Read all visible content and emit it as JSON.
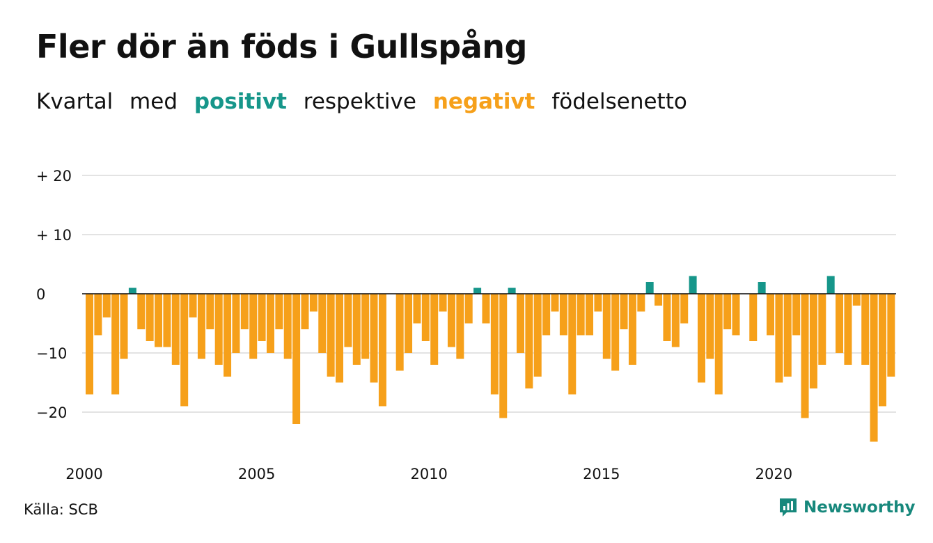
{
  "title": "Fler dör än föds i Gullspång",
  "subtitle": {
    "part1": "Kvartal",
    "part2": "med",
    "positive_word": "positivt",
    "part3": "respektive",
    "negative_word": "negativt",
    "part4": "födelsenetto"
  },
  "source": "Källa: SCB",
  "brand": {
    "name": "Newsworthy",
    "icon": "newsworthy-logo-icon"
  },
  "colors": {
    "positive": "#16968a",
    "negative": "#f6a01a",
    "grid": "#e3e3e3",
    "brand": "#17887c"
  },
  "chart_data": {
    "type": "bar",
    "x_start": "2000 Q1",
    "period": "quarter",
    "values": [
      -17,
      -7,
      -4,
      -17,
      -11,
      1,
      -6,
      -8,
      -9,
      -9,
      -12,
      -19,
      -4,
      -11,
      -6,
      -12,
      -14,
      -10,
      -6,
      -11,
      -8,
      -10,
      -6,
      -11,
      -22,
      -6,
      -3,
      -10,
      -14,
      -15,
      -9,
      -12,
      -11,
      -15,
      -19,
      0,
      -13,
      -10,
      -5,
      -8,
      -12,
      -3,
      -9,
      -11,
      -5,
      1,
      -5,
      -17,
      -21,
      1,
      -10,
      -16,
      -14,
      -7,
      -3,
      -7,
      -17,
      -7,
      -7,
      -3,
      -11,
      -13,
      -6,
      -12,
      -3,
      2,
      -2,
      -8,
      -9,
      -5,
      3,
      -15,
      -11,
      -17,
      -6,
      -7,
      0,
      -8,
      2,
      -7,
      -15,
      -14,
      -7,
      -21,
      -16,
      -12,
      3,
      -10,
      -12,
      -2,
      -12,
      -25,
      -19,
      -14
    ],
    "y_ticks": [
      20,
      10,
      0,
      -10,
      -20
    ],
    "y_tick_labels": [
      "+ 20",
      "+ 10",
      "0",
      "−10",
      "−20"
    ],
    "x_ticks": [
      "2000",
      "2005",
      "2010",
      "2015",
      "2020"
    ],
    "ylim": [
      -25,
      20
    ],
    "grid": true
  }
}
